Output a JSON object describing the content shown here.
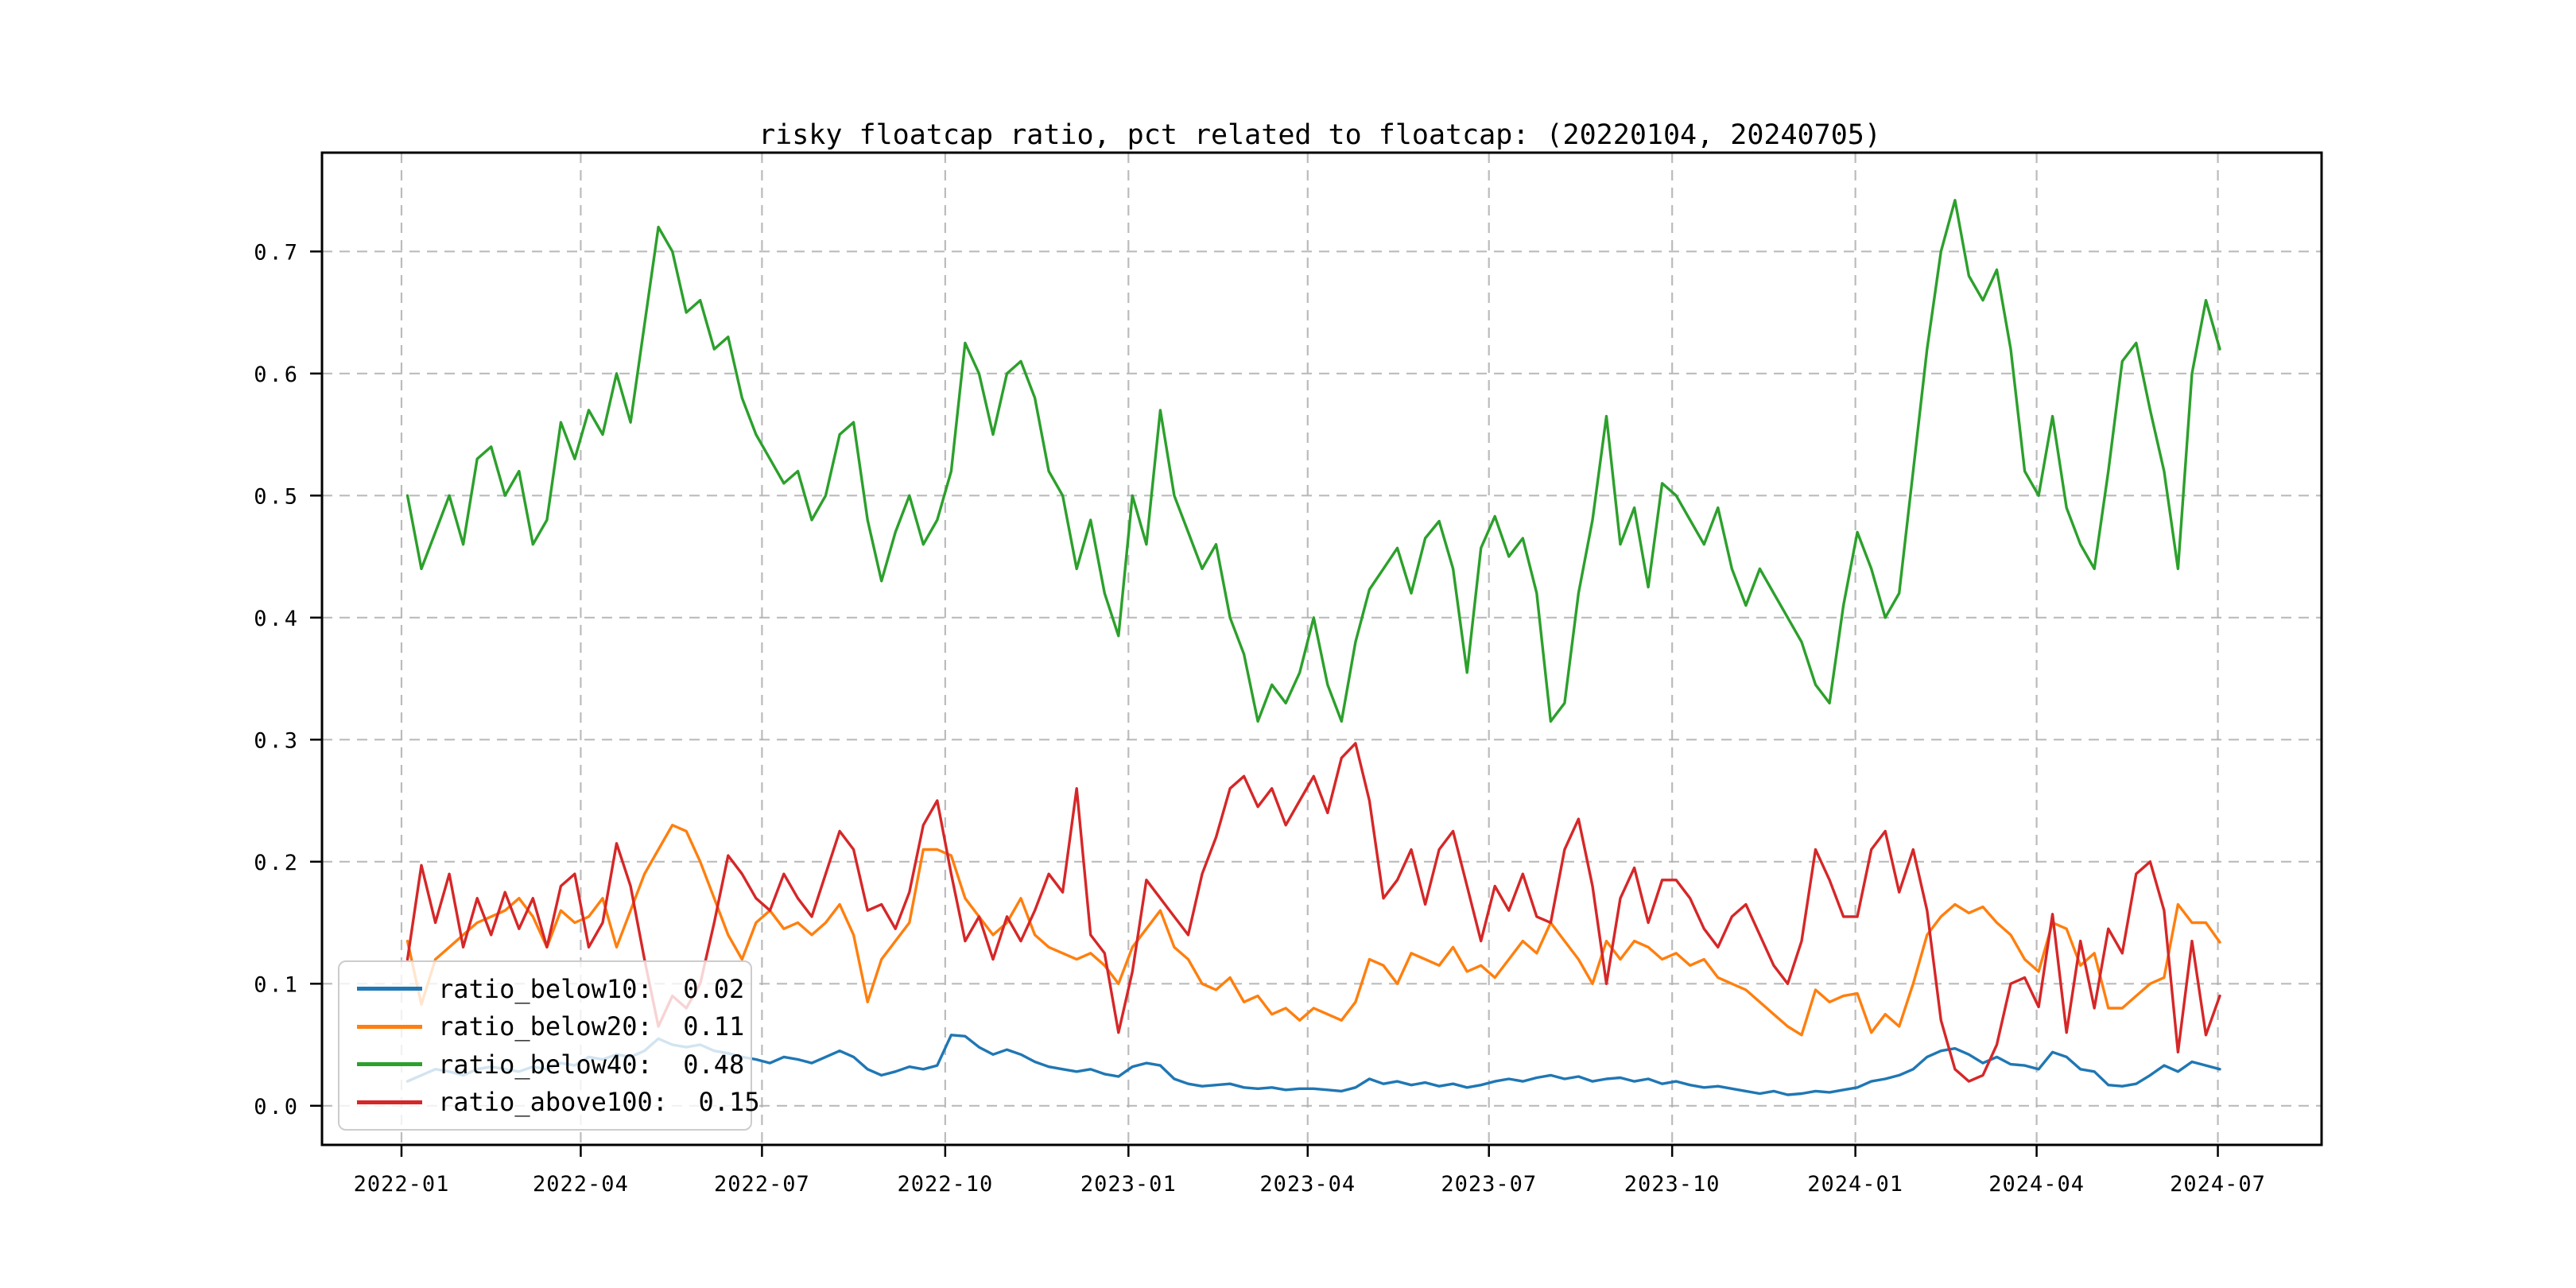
{
  "chart_data": {
    "type": "line",
    "title": "risky floatcap ratio, pct related to floatcap: (20220104, 20240705)",
    "xlabel": "",
    "ylabel": "",
    "grid": true,
    "legend_position": "lower left",
    "ylim": [
      -0.032,
      0.779
    ],
    "y_ticks": [
      0.0,
      0.1,
      0.2,
      0.3,
      0.4,
      0.5,
      0.6,
      0.7
    ],
    "y_tick_labels": [
      "0.0",
      "0.1",
      "0.2",
      "0.3",
      "0.4",
      "0.5",
      "0.6",
      "0.7"
    ],
    "x_tick_dates": [
      "2022-01-01",
      "2022-04-01",
      "2022-07-01",
      "2022-10-01",
      "2023-01-01",
      "2023-04-01",
      "2023-07-01",
      "2023-10-01",
      "2024-01-01",
      "2024-04-01",
      "2024-07-01"
    ],
    "x_tick_labels": [
      "2022-01",
      "2022-04",
      "2022-07",
      "2022-10",
      "2023-01",
      "2023-04",
      "2023-07",
      "2023-10",
      "2024-01",
      "2024-04",
      "2024-07"
    ],
    "x_start": "2022-01-04",
    "x_end": "2024-07-05",
    "x_step_days": 7,
    "grid_color": "#b0b0b0",
    "series": [
      {
        "name": "ratio_below10",
        "legend_label": "ratio_below10:  0.02",
        "color": "#1f77b4",
        "values": [
          0.02,
          0.025,
          0.03,
          0.028,
          0.025,
          0.03,
          0.032,
          0.03,
          0.028,
          0.032,
          0.03,
          0.035,
          0.033,
          0.04,
          0.038,
          0.042,
          0.04,
          0.045,
          0.055,
          0.05,
          0.048,
          0.05,
          0.045,
          0.043,
          0.04,
          0.038,
          0.035,
          0.04,
          0.038,
          0.035,
          0.04,
          0.045,
          0.04,
          0.03,
          0.025,
          0.028,
          0.032,
          0.03,
          0.033,
          0.058,
          0.057,
          0.048,
          0.042,
          0.046,
          0.042,
          0.036,
          0.032,
          0.03,
          0.028,
          0.03,
          0.026,
          0.024,
          0.032,
          0.035,
          0.033,
          0.022,
          0.018,
          0.016,
          0.017,
          0.018,
          0.015,
          0.014,
          0.015,
          0.013,
          0.014,
          0.014,
          0.013,
          0.012,
          0.015,
          0.022,
          0.018,
          0.02,
          0.017,
          0.019,
          0.016,
          0.018,
          0.015,
          0.017,
          0.02,
          0.022,
          0.02,
          0.023,
          0.025,
          0.022,
          0.024,
          0.02,
          0.022,
          0.023,
          0.02,
          0.022,
          0.018,
          0.02,
          0.017,
          0.015,
          0.016,
          0.014,
          0.012,
          0.01,
          0.012,
          0.009,
          0.01,
          0.012,
          0.011,
          0.013,
          0.015,
          0.02,
          0.022,
          0.025,
          0.03,
          0.04,
          0.045,
          0.047,
          0.042,
          0.035,
          0.04,
          0.034,
          0.033,
          0.03,
          0.044,
          0.04,
          0.03,
          0.028,
          0.017,
          0.016,
          0.018,
          0.025,
          0.033,
          0.028,
          0.036,
          0.033,
          0.03
        ]
      },
      {
        "name": "ratio_below20",
        "legend_label": "ratio_below20:  0.11",
        "color": "#ff7f0e",
        "values": [
          0.135,
          0.083,
          0.12,
          0.13,
          0.14,
          0.15,
          0.155,
          0.16,
          0.17,
          0.155,
          0.13,
          0.16,
          0.15,
          0.155,
          0.17,
          0.13,
          0.16,
          0.19,
          0.21,
          0.23,
          0.225,
          0.2,
          0.17,
          0.14,
          0.12,
          0.15,
          0.16,
          0.145,
          0.15,
          0.14,
          0.15,
          0.165,
          0.14,
          0.085,
          0.12,
          0.135,
          0.15,
          0.21,
          0.21,
          0.205,
          0.17,
          0.155,
          0.14,
          0.15,
          0.17,
          0.14,
          0.13,
          0.125,
          0.12,
          0.125,
          0.115,
          0.1,
          0.13,
          0.145,
          0.16,
          0.13,
          0.12,
          0.1,
          0.095,
          0.105,
          0.085,
          0.09,
          0.075,
          0.08,
          0.07,
          0.08,
          0.075,
          0.07,
          0.085,
          0.12,
          0.115,
          0.1,
          0.125,
          0.12,
          0.115,
          0.13,
          0.11,
          0.115,
          0.105,
          0.12,
          0.135,
          0.125,
          0.15,
          0.135,
          0.12,
          0.1,
          0.135,
          0.12,
          0.135,
          0.13,
          0.12,
          0.125,
          0.115,
          0.12,
          0.105,
          0.1,
          0.095,
          0.085,
          0.075,
          0.065,
          0.058,
          0.095,
          0.085,
          0.09,
          0.092,
          0.06,
          0.075,
          0.065,
          0.1,
          0.14,
          0.155,
          0.165,
          0.158,
          0.163,
          0.15,
          0.14,
          0.12,
          0.11,
          0.15,
          0.145,
          0.115,
          0.125,
          0.08,
          0.08,
          0.09,
          0.1,
          0.105,
          0.165,
          0.15,
          0.15,
          0.134
        ]
      },
      {
        "name": "ratio_below40",
        "legend_label": "ratio_below40:  0.48",
        "color": "#2ca02c",
        "values": [
          0.5,
          0.44,
          0.47,
          0.5,
          0.46,
          0.53,
          0.54,
          0.5,
          0.52,
          0.46,
          0.48,
          0.56,
          0.53,
          0.57,
          0.55,
          0.6,
          0.56,
          0.64,
          0.72,
          0.7,
          0.65,
          0.66,
          0.62,
          0.63,
          0.58,
          0.55,
          0.53,
          0.51,
          0.52,
          0.48,
          0.5,
          0.55,
          0.56,
          0.48,
          0.43,
          0.47,
          0.5,
          0.46,
          0.48,
          0.52,
          0.625,
          0.6,
          0.55,
          0.6,
          0.61,
          0.58,
          0.52,
          0.5,
          0.44,
          0.48,
          0.42,
          0.385,
          0.5,
          0.46,
          0.57,
          0.5,
          0.47,
          0.44,
          0.46,
          0.4,
          0.37,
          0.315,
          0.345,
          0.33,
          0.355,
          0.4,
          0.345,
          0.315,
          0.38,
          0.423,
          0.44,
          0.457,
          0.42,
          0.465,
          0.479,
          0.44,
          0.355,
          0.457,
          0.483,
          0.45,
          0.465,
          0.42,
          0.315,
          0.33,
          0.42,
          0.48,
          0.565,
          0.46,
          0.49,
          0.425,
          0.51,
          0.5,
          0.48,
          0.46,
          0.49,
          0.44,
          0.41,
          0.44,
          0.42,
          0.4,
          0.38,
          0.345,
          0.33,
          0.41,
          0.47,
          0.44,
          0.4,
          0.42,
          0.52,
          0.62,
          0.7,
          0.742,
          0.68,
          0.66,
          0.685,
          0.62,
          0.52,
          0.5,
          0.565,
          0.49,
          0.46,
          0.44,
          0.52,
          0.61,
          0.625,
          0.57,
          0.52,
          0.44,
          0.6,
          0.66,
          0.62
        ]
      },
      {
        "name": "ratio_above100",
        "legend_label": "ratio_above100:  0.15",
        "color": "#d62728",
        "values": [
          0.12,
          0.197,
          0.15,
          0.19,
          0.13,
          0.17,
          0.14,
          0.175,
          0.145,
          0.17,
          0.13,
          0.18,
          0.19,
          0.13,
          0.15,
          0.215,
          0.18,
          0.12,
          0.065,
          0.09,
          0.08,
          0.1,
          0.15,
          0.205,
          0.19,
          0.17,
          0.16,
          0.19,
          0.17,
          0.155,
          0.19,
          0.225,
          0.21,
          0.16,
          0.165,
          0.145,
          0.175,
          0.23,
          0.25,
          0.19,
          0.135,
          0.155,
          0.12,
          0.155,
          0.135,
          0.16,
          0.19,
          0.175,
          0.26,
          0.14,
          0.125,
          0.06,
          0.11,
          0.185,
          0.17,
          0.155,
          0.14,
          0.19,
          0.22,
          0.26,
          0.27,
          0.245,
          0.26,
          0.23,
          0.25,
          0.27,
          0.24,
          0.285,
          0.297,
          0.25,
          0.17,
          0.185,
          0.21,
          0.165,
          0.21,
          0.225,
          0.18,
          0.135,
          0.18,
          0.16,
          0.19,
          0.155,
          0.15,
          0.21,
          0.235,
          0.18,
          0.1,
          0.17,
          0.195,
          0.15,
          0.185,
          0.185,
          0.17,
          0.145,
          0.13,
          0.155,
          0.165,
          0.14,
          0.115,
          0.1,
          0.135,
          0.21,
          0.185,
          0.155,
          0.155,
          0.21,
          0.225,
          0.175,
          0.21,
          0.16,
          0.07,
          0.03,
          0.02,
          0.025,
          0.05,
          0.1,
          0.105,
          0.081,
          0.157,
          0.06,
          0.135,
          0.08,
          0.145,
          0.125,
          0.19,
          0.2,
          0.16,
          0.044,
          0.135,
          0.058,
          0.09
        ]
      }
    ]
  }
}
